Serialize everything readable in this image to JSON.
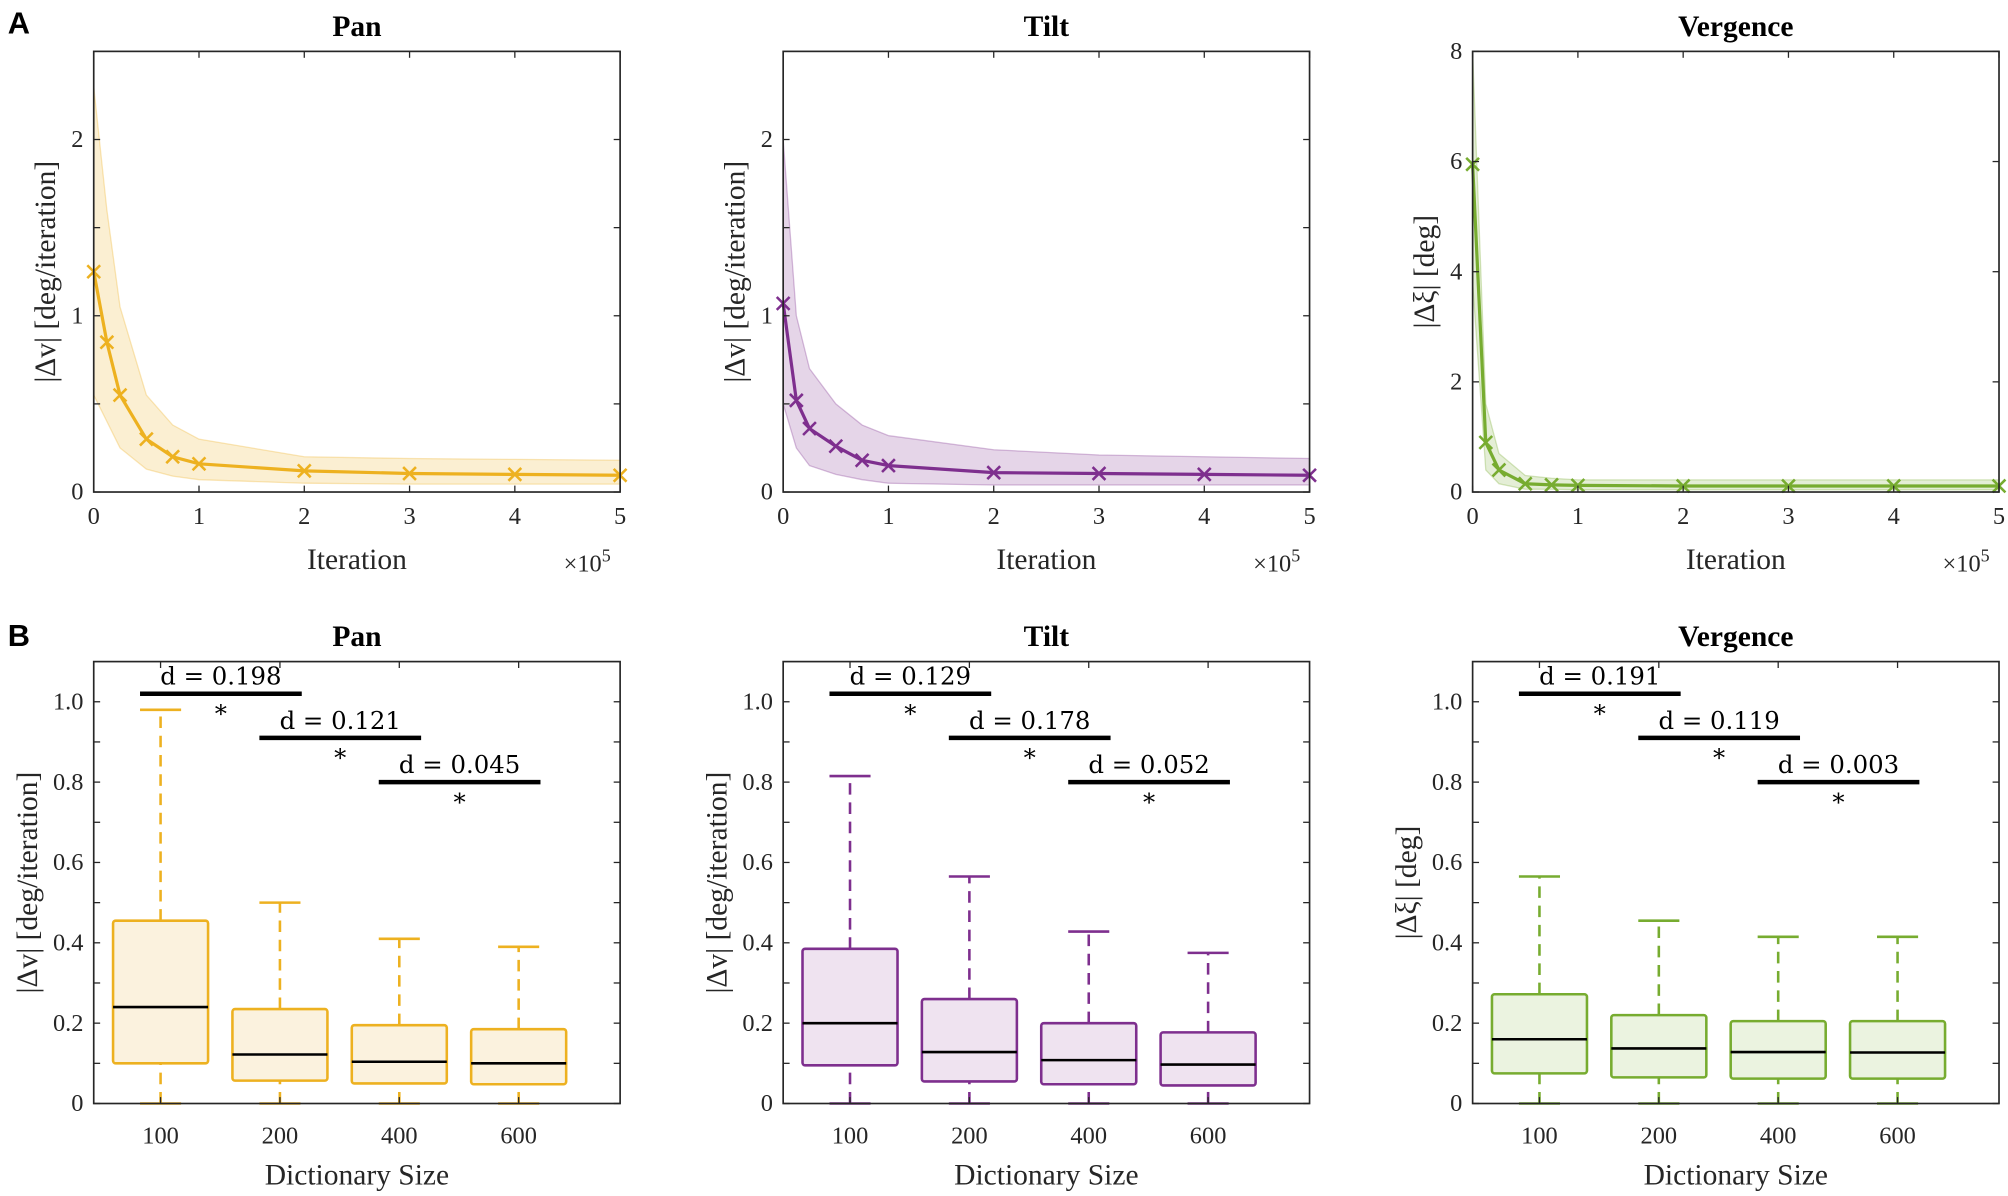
{
  "panel_labels": [
    "A",
    "B"
  ],
  "colors": {
    "pan": "#EDB120",
    "tilt": "#7E2F8E",
    "vergence": "#77AC30"
  },
  "chart_data": [
    {
      "type": "line",
      "panel": "A",
      "title": "Pan",
      "xlabel": "Iteration",
      "x_multiplier": "×10",
      "x_exponent": "5",
      "ylabel": "|Δv| [deg/iteration]",
      "color": "#EDB120",
      "xlim": [
        0,
        5
      ],
      "ylim": [
        0,
        2.5
      ],
      "xticks": [
        0,
        1,
        2,
        3,
        4,
        5
      ],
      "yticks": [
        0,
        1,
        2
      ],
      "yminor": [
        0.5,
        1.5
      ],
      "x": [
        0,
        0.125,
        0.25,
        0.5,
        0.75,
        1,
        2,
        3,
        4,
        5
      ],
      "mean": [
        1.25,
        0.85,
        0.55,
        0.3,
        0.2,
        0.16,
        0.12,
        0.105,
        0.1,
        0.095
      ],
      "upper": [
        2.3,
        1.6,
        1.05,
        0.55,
        0.38,
        0.3,
        0.2,
        0.19,
        0.185,
        0.18
      ],
      "lower": [
        0.55,
        0.4,
        0.25,
        0.13,
        0.09,
        0.07,
        0.05,
        0.045,
        0.045,
        0.045
      ]
    },
    {
      "type": "line",
      "panel": "A",
      "title": "Tilt",
      "xlabel": "Iteration",
      "x_multiplier": "×10",
      "x_exponent": "5",
      "ylabel": "|Δv| [deg/iteration]",
      "color": "#7E2F8E",
      "xlim": [
        0,
        5
      ],
      "ylim": [
        0,
        2.5
      ],
      "xticks": [
        0,
        1,
        2,
        3,
        4,
        5
      ],
      "yticks": [
        0,
        1,
        2
      ],
      "yminor": [
        0.5,
        1.5
      ],
      "x": [
        0,
        0.125,
        0.25,
        0.5,
        0.75,
        1,
        2,
        3,
        4,
        5
      ],
      "mean": [
        1.07,
        0.52,
        0.36,
        0.26,
        0.18,
        0.15,
        0.11,
        0.105,
        0.1,
        0.095
      ],
      "upper": [
        2.0,
        1.0,
        0.7,
        0.5,
        0.38,
        0.32,
        0.24,
        0.21,
        0.2,
        0.19
      ],
      "lower": [
        0.5,
        0.25,
        0.15,
        0.1,
        0.07,
        0.05,
        0.04,
        0.04,
        0.04,
        0.04
      ]
    },
    {
      "type": "line",
      "panel": "A",
      "title": "Vergence",
      "xlabel": "Iteration",
      "x_multiplier": "×10",
      "x_exponent": "5",
      "ylabel": "|Δξ| [deg]",
      "color": "#77AC30",
      "xlim": [
        0,
        5
      ],
      "ylim": [
        0,
        8
      ],
      "xticks": [
        0,
        1,
        2,
        3,
        4,
        5
      ],
      "yticks": [
        0,
        2,
        4,
        6,
        8
      ],
      "yminor": [],
      "x": [
        0,
        0.125,
        0.25,
        0.5,
        0.75,
        1,
        2,
        3,
        4,
        5
      ],
      "mean": [
        5.95,
        0.9,
        0.4,
        0.15,
        0.13,
        0.12,
        0.11,
        0.11,
        0.11,
        0.11
      ],
      "upper": [
        8,
        1.6,
        0.7,
        0.3,
        0.25,
        0.22,
        0.22,
        0.22,
        0.22,
        0.22
      ],
      "lower": [
        3.8,
        0.4,
        0.15,
        0.05,
        0.05,
        0.04,
        0.04,
        0.04,
        0.04,
        0.04
      ]
    },
    {
      "type": "box",
      "panel": "B",
      "title": "Pan",
      "xlabel": "Dictionary Size",
      "ylabel": "|Δv| [deg/iteration]",
      "color": "#EDB120",
      "fill": "#FBF2DE",
      "ylim": [
        0,
        1.1
      ],
      "yticks": [
        "0",
        "0.2",
        "0.4",
        "0.6",
        "0.8",
        "1.0"
      ],
      "yminor": [
        0.1,
        0.3,
        0.5,
        0.7,
        0.9
      ],
      "categories": [
        "100",
        "200",
        "400",
        "600"
      ],
      "boxes": [
        {
          "min": 0,
          "q1": 0.1,
          "median": 0.24,
          "q3": 0.455,
          "max": 0.98
        },
        {
          "min": 0,
          "q1": 0.057,
          "median": 0.122,
          "q3": 0.235,
          "max": 0.5
        },
        {
          "min": 0,
          "q1": 0.05,
          "median": 0.104,
          "q3": 0.195,
          "max": 0.41
        },
        {
          "min": 0,
          "q1": 0.048,
          "median": 0.1,
          "q3": 0.185,
          "max": 0.39
        }
      ],
      "comparisons": [
        {
          "from": 0,
          "to": 1,
          "y": 1.02,
          "label": "d = 0.198",
          "sig": "*"
        },
        {
          "from": 1,
          "to": 2,
          "y": 0.91,
          "label": "d = 0.121",
          "sig": "*"
        },
        {
          "from": 2,
          "to": 3,
          "y": 0.8,
          "label": "d = 0.045",
          "sig": "*"
        }
      ]
    },
    {
      "type": "box",
      "panel": "B",
      "title": "Tilt",
      "xlabel": "Dictionary Size",
      "ylabel": "|Δv| [deg/iteration]",
      "color": "#7E2F8E",
      "fill": "#EFE3F0",
      "ylim": [
        0,
        1.1
      ],
      "yticks": [
        "0",
        "0.2",
        "0.4",
        "0.6",
        "0.8",
        "1.0"
      ],
      "yminor": [
        0.1,
        0.3,
        0.5,
        0.7,
        0.9
      ],
      "categories": [
        "100",
        "200",
        "400",
        "600"
      ],
      "boxes": [
        {
          "min": 0,
          "q1": 0.095,
          "median": 0.2,
          "q3": 0.385,
          "max": 0.815
        },
        {
          "min": 0,
          "q1": 0.055,
          "median": 0.128,
          "q3": 0.26,
          "max": 0.565
        },
        {
          "min": 0,
          "q1": 0.048,
          "median": 0.108,
          "q3": 0.2,
          "max": 0.428
        },
        {
          "min": 0,
          "q1": 0.045,
          "median": 0.097,
          "q3": 0.177,
          "max": 0.375
        }
      ],
      "comparisons": [
        {
          "from": 0,
          "to": 1,
          "y": 1.02,
          "label": "d = 0.129",
          "sig": "*"
        },
        {
          "from": 1,
          "to": 2,
          "y": 0.91,
          "label": "d = 0.178",
          "sig": "*"
        },
        {
          "from": 2,
          "to": 3,
          "y": 0.8,
          "label": "d = 0.052",
          "sig": "*"
        }
      ]
    },
    {
      "type": "box",
      "panel": "B",
      "title": "Vergence",
      "xlabel": "Dictionary Size",
      "ylabel": "|Δξ| [deg]",
      "color": "#77AC30",
      "fill": "#EBF3E0",
      "ylim": [
        0,
        1.1
      ],
      "yticks": [
        "0",
        "0.2",
        "0.4",
        "0.6",
        "0.8",
        "1.0"
      ],
      "yminor": [
        0.1,
        0.3,
        0.5,
        0.7,
        0.9
      ],
      "categories": [
        "100",
        "200",
        "400",
        "600"
      ],
      "boxes": [
        {
          "min": 0,
          "q1": 0.075,
          "median": 0.16,
          "q3": 0.272,
          "max": 0.565
        },
        {
          "min": 0,
          "q1": 0.065,
          "median": 0.137,
          "q3": 0.22,
          "max": 0.455
        },
        {
          "min": 0,
          "q1": 0.062,
          "median": 0.128,
          "q3": 0.205,
          "max": 0.415
        },
        {
          "min": 0,
          "q1": 0.062,
          "median": 0.127,
          "q3": 0.205,
          "max": 0.415
        }
      ],
      "comparisons": [
        {
          "from": 0,
          "to": 1,
          "y": 1.02,
          "label": "d = 0.191",
          "sig": "*"
        },
        {
          "from": 1,
          "to": 2,
          "y": 0.91,
          "label": "d = 0.119",
          "sig": "*"
        },
        {
          "from": 2,
          "to": 3,
          "y": 0.8,
          "label": "d = 0.003",
          "sig": "*"
        }
      ]
    }
  ]
}
